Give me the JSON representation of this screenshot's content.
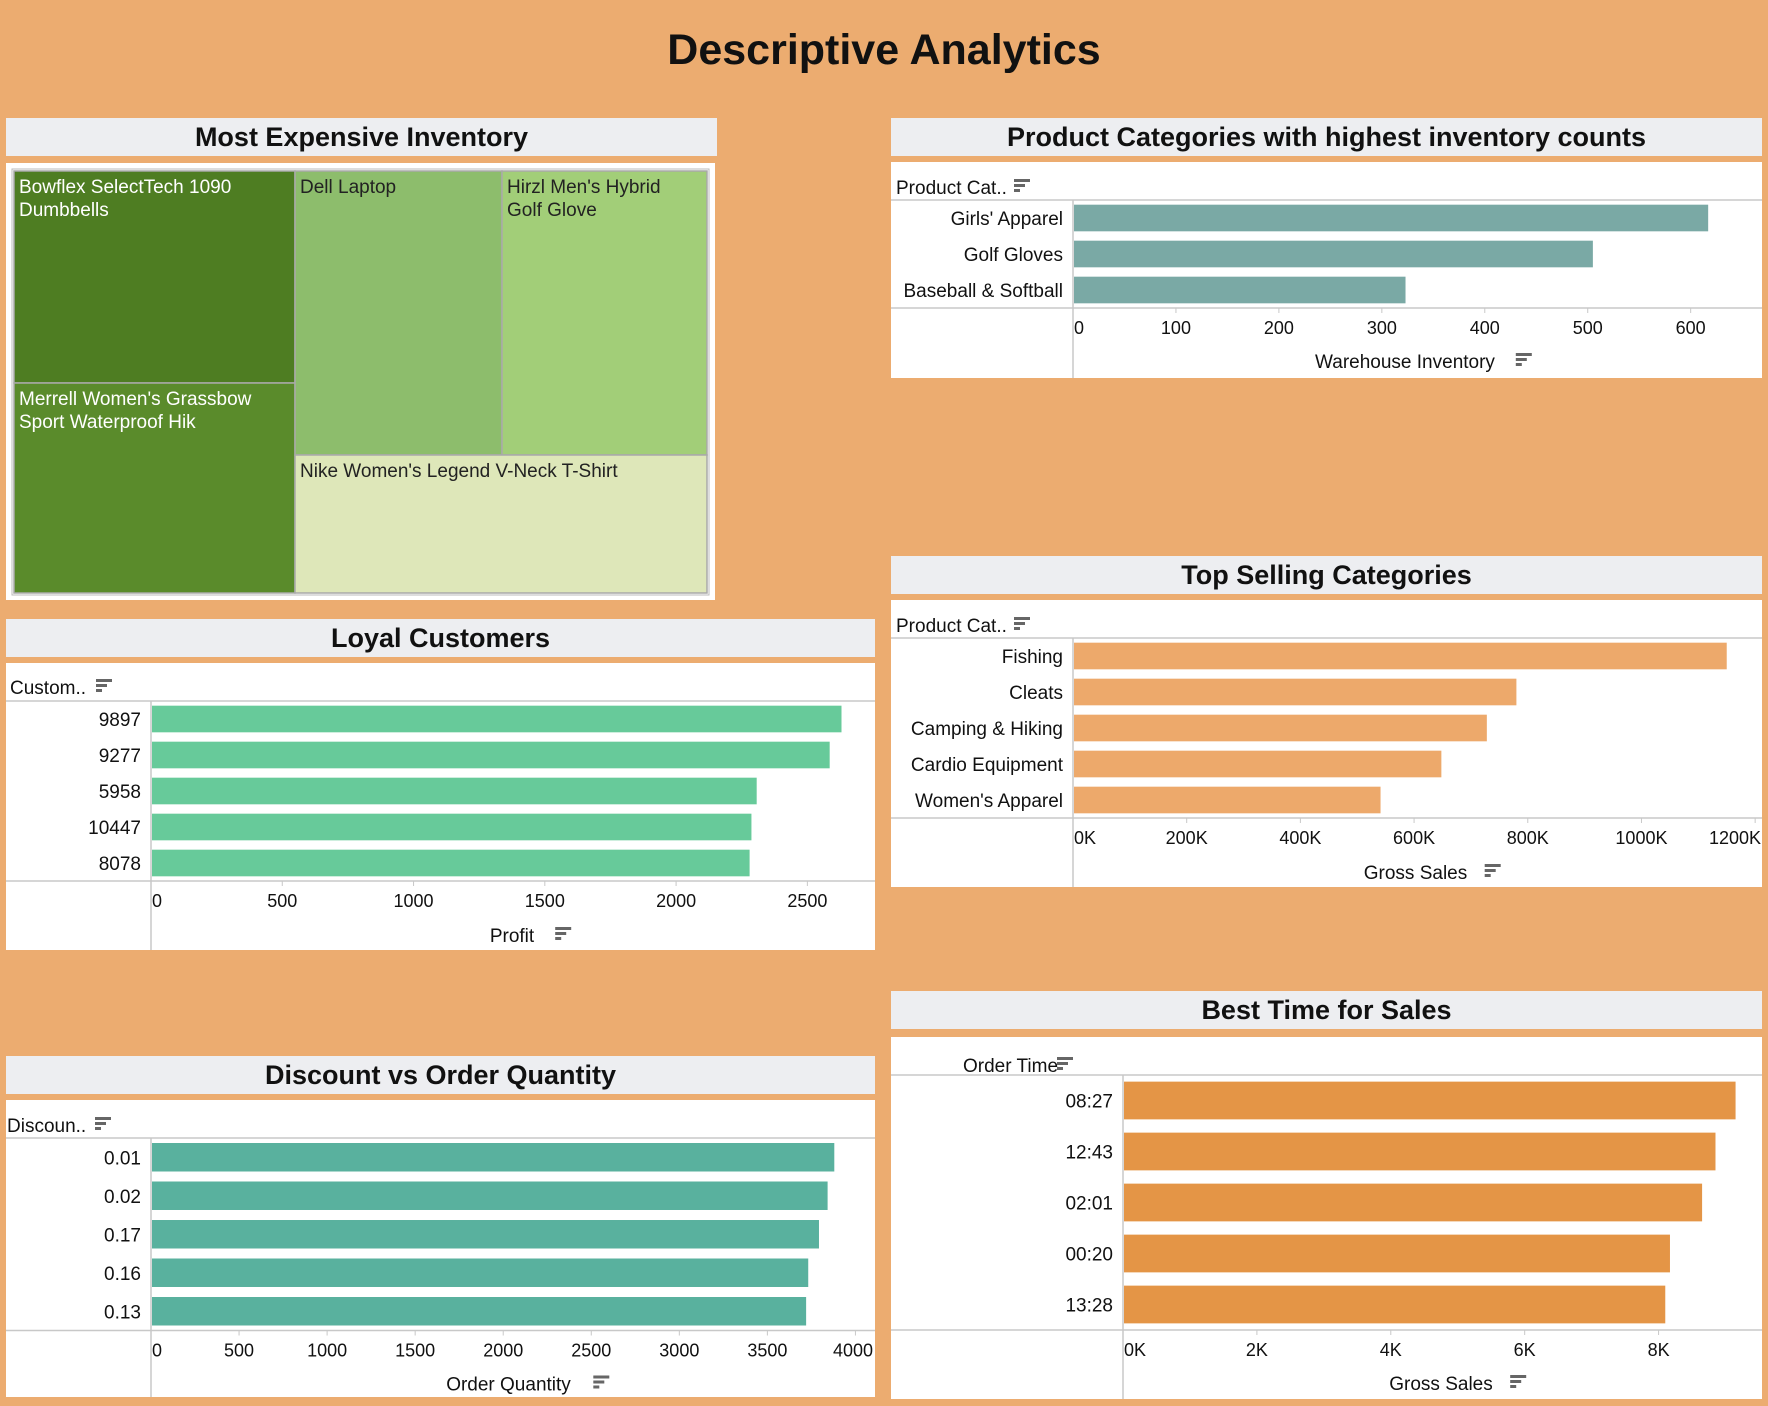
{
  "dashboard": {
    "title": "Descriptive Analytics"
  },
  "colors": {
    "background": "#ECAC70",
    "treemap": [
      "#4E7D22",
      "#5A8B2B",
      "#8DBD6C",
      "#A2CE78",
      "#DEE7B9"
    ],
    "inventory_bars": "#7AA9A5",
    "selling_bars": "#EDA96B",
    "loyal_bars": "#67CA9A",
    "discount_bars": "#59B19E",
    "time_bars": "#E49546"
  },
  "chart_data": [
    {
      "id": "expensive",
      "type": "treemap",
      "title": "Most Expensive Inventory",
      "items": [
        {
          "label": "Bowflex SelectTech 1090 Dumbbells",
          "lines": [
            "Bowflex SelectTech 1090",
            "Dumbbells"
          ]
        },
        {
          "label": "Merrell Women's Grassbow Sport Waterproof Hik",
          "lines": [
            "Merrell Women's Grassbow",
            "Sport Waterproof Hik"
          ]
        },
        {
          "label": "Dell Laptop",
          "lines": [
            "Dell Laptop"
          ]
        },
        {
          "label": "Hirzl Men's Hybrid Golf Glove",
          "lines": [
            "Hirzl Men's Hybrid",
            "Golf Glove"
          ]
        },
        {
          "label": "Nike Women's Legend V-Neck T-Shirt",
          "lines": [
            "Nike Women's Legend V-Neck T-Shirt"
          ]
        }
      ]
    },
    {
      "id": "inventory",
      "type": "bar",
      "title": "Product Categories with highest inventory counts",
      "ytitle": "Product Cat..",
      "xlabel": "Warehouse Inventory",
      "categories": [
        "Girls' Apparel",
        "Golf Gloves",
        "Baseball & Softball"
      ],
      "values": [
        617,
        505,
        323
      ],
      "xlim": [
        0,
        645
      ],
      "ticks": [
        0,
        100,
        200,
        300,
        400,
        500,
        600
      ],
      "tick_labels": [
        "0",
        "100",
        "200",
        "300",
        "400",
        "500",
        "600"
      ]
    },
    {
      "id": "selling",
      "type": "bar",
      "title": "Top Selling Categories",
      "ytitle": "Product Cat..",
      "xlabel": "Gross Sales",
      "categories": [
        "Fishing",
        "Cleats",
        "Camping & Hiking",
        "Cardio Equipment",
        "Women's Apparel"
      ],
      "values": [
        1150000,
        780000,
        728000,
        648000,
        541000
      ],
      "xlim": [
        0,
        1205000
      ],
      "ticks": [
        0,
        200000,
        400000,
        600000,
        800000,
        1000000,
        1200000
      ],
      "tick_labels": [
        "0K",
        "200K",
        "400K",
        "600K",
        "800K",
        "1000K",
        "1200K"
      ]
    },
    {
      "id": "loyal",
      "type": "bar",
      "title": "Loyal Customers",
      "ytitle": "Custom..",
      "xlabel": "Profit",
      "categories": [
        "9897",
        "9277",
        "5958",
        "10447",
        "8078"
      ],
      "values": [
        2630,
        2585,
        2307,
        2287,
        2280
      ],
      "xlim": [
        0,
        2750
      ],
      "ticks": [
        0,
        500,
        1000,
        1500,
        2000,
        2500
      ],
      "tick_labels": [
        "0",
        "500",
        "1000",
        "1500",
        "2000",
        "2500"
      ]
    },
    {
      "id": "discount",
      "type": "bar",
      "title": "Discount vs Order Quantity",
      "ytitle": "Discoun..",
      "xlabel": "Order Quantity",
      "categories": [
        "0.01",
        "0.02",
        "0.17",
        "0.16",
        "0.13"
      ],
      "values": [
        3880,
        3842,
        3793,
        3732,
        3720
      ],
      "xlim": [
        0,
        4060
      ],
      "ticks": [
        0,
        500,
        1000,
        1500,
        2000,
        2500,
        3000,
        3500,
        4000
      ],
      "tick_labels": [
        "0",
        "500",
        "1000",
        "1500",
        "2000",
        "2500",
        "3000",
        "3500",
        "4000"
      ]
    },
    {
      "id": "time",
      "type": "bar",
      "title": "Best Time for Sales",
      "ytitle": "Order Time",
      "xlabel": "Gross Sales",
      "categories": [
        "08:27",
        "12:43",
        "02:01",
        "00:20",
        "13:28"
      ],
      "values": [
        9150,
        8850,
        8650,
        8170,
        8100
      ],
      "xlim": [
        0,
        9500
      ],
      "ticks": [
        0,
        2000,
        4000,
        6000,
        8000
      ],
      "tick_labels": [
        "0K",
        "2K",
        "4K",
        "6K",
        "8K"
      ]
    }
  ]
}
